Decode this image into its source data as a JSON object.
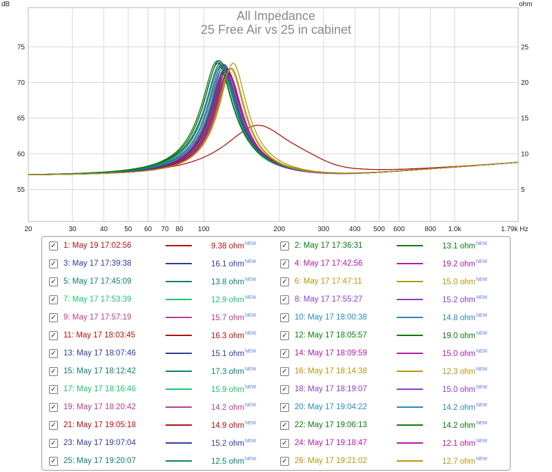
{
  "chart_data": {
    "type": "line",
    "title": "All Impedance",
    "subtitle": "25 Free Air vs 25 in cabinet",
    "ylabel_left": "dB",
    "ylabel_right": "ohm",
    "x_scale": "log",
    "xlim": [
      20,
      1790
    ],
    "ylim": [
      50.5,
      80.5
    ],
    "y2lim": [
      0.5,
      30.5
    ],
    "x_ticks": [
      20,
      30,
      40,
      50,
      60,
      70,
      80,
      100,
      200,
      300,
      400,
      500,
      600,
      800,
      1000,
      1790
    ],
    "x_tick_labels": [
      "20",
      "30",
      "40",
      "50",
      "60",
      "70",
      "80",
      "100",
      "200",
      "300",
      "400",
      "500",
      "600",
      "800",
      "1.0k",
      "1.79k Hz"
    ],
    "y_ticks": [
      55,
      60,
      65,
      70,
      75
    ],
    "y2_ticks": [
      5,
      10,
      15,
      20,
      25
    ],
    "grid": true,
    "series": [
      {
        "name": "1: May 19 17:02:56",
        "color": "#b01010",
        "value": "9.38 ohm",
        "peak_freq": 165,
        "peak_db": 64.0,
        "q": 1.6
      },
      {
        "name": "2: May 17 17:36:31",
        "color": "#0b7a0b",
        "value": "13.1 ohm",
        "peak_freq": 117,
        "peak_db": 72.8,
        "q": 4.2
      },
      {
        "name": "3: May 17 17:39:38",
        "color": "#2e3a9e",
        "value": "16.1 ohm",
        "peak_freq": 115,
        "peak_db": 73.1,
        "q": 4.3
      },
      {
        "name": "4: May 17 17:42:56",
        "color": "#b01aa8",
        "value": "19.2 ohm",
        "peak_freq": 121,
        "peak_db": 72.5,
        "q": 4.5
      },
      {
        "name": "5: May 17 17:45:09",
        "color": "#0f7d6e",
        "value": "13.8 ohm",
        "peak_freq": 119,
        "peak_db": 72.6,
        "q": 4.4
      },
      {
        "name": "6: May 17 17:47:11",
        "color": "#b8960c",
        "value": "15.0 ohm",
        "peak_freq": 131,
        "peak_db": 72.7,
        "q": 4.8
      },
      {
        "name": "7: May 17 17:53:39",
        "color": "#1ec46e",
        "value": "12.9 ohm",
        "peak_freq": 121,
        "peak_db": 71.4,
        "q": 4.5
      },
      {
        "name": "8: May 17 17:55:27",
        "color": "#8c3cc8",
        "value": "15.2 ohm",
        "peak_freq": 126,
        "peak_db": 71.2,
        "q": 4.6
      },
      {
        "name": "9: May 17 17:57:19",
        "color": "#b83c8c",
        "value": "15.7 ohm",
        "peak_freq": 123,
        "peak_db": 71.6,
        "q": 4.5
      },
      {
        "name": "10: May 17 18:00:38",
        "color": "#2c86b8",
        "value": "14.8 ohm",
        "peak_freq": 119,
        "peak_db": 72.0,
        "q": 4.4
      },
      {
        "name": "11: May 17 18:03:45",
        "color": "#b01010",
        "value": "16.3 ohm",
        "peak_freq": 124,
        "peak_db": 71.8,
        "q": 4.6
      },
      {
        "name": "12: May 17 18:05:57",
        "color": "#0b7a0b",
        "value": "19.0 ohm",
        "peak_freq": 113,
        "peak_db": 73.0,
        "q": 4.3
      },
      {
        "name": "13: May 17 18:07:46",
        "color": "#2e3a9e",
        "value": "15.1 ohm",
        "peak_freq": 123,
        "peak_db": 72.0,
        "q": 4.5
      },
      {
        "name": "14: May 17 18:09:59",
        "color": "#b01aa8",
        "value": "15.0 ohm",
        "peak_freq": 125,
        "peak_db": 71.5,
        "q": 4.6
      },
      {
        "name": "15: May 17 18:12:42",
        "color": "#0f7d6e",
        "value": "17.3 ohm",
        "peak_freq": 117,
        "peak_db": 72.4,
        "q": 4.3
      },
      {
        "name": "16: May 17 18:14:38",
        "color": "#b8960c",
        "value": "12.3 ohm",
        "peak_freq": 129,
        "peak_db": 72.0,
        "q": 4.8
      },
      {
        "name": "17: May 17 18:16:46",
        "color": "#1ec46e",
        "value": "15.9 ohm",
        "peak_freq": 119,
        "peak_db": 71.0,
        "q": 4.4
      },
      {
        "name": "18: May 17 18:19:07",
        "color": "#8c3cc8",
        "value": "15.0 ohm",
        "peak_freq": 123,
        "peak_db": 70.9,
        "q": 4.6
      },
      {
        "name": "19: May 17 18:20:42",
        "color": "#b83c8c",
        "value": "14.2 ohm",
        "peak_freq": 121,
        "peak_db": 71.9,
        "q": 4.5
      },
      {
        "name": "20: May 17 19:04:22",
        "color": "#2c86b8",
        "value": "14.2 ohm",
        "peak_freq": 116,
        "peak_db": 72.6,
        "q": 4.4
      },
      {
        "name": "21: May 17 19:05:18",
        "color": "#b01010",
        "value": "14.9 ohm",
        "peak_freq": 125,
        "peak_db": 71.3,
        "q": 4.6
      },
      {
        "name": "22: May 17 19:06:13",
        "color": "#0b7a0b",
        "value": "14.2 ohm",
        "peak_freq": 114,
        "peak_db": 72.7,
        "q": 4.3
      },
      {
        "name": "23: May 17 19:07:04",
        "color": "#2e3a9e",
        "value": "15.2 ohm",
        "peak_freq": 121,
        "peak_db": 71.7,
        "q": 4.5
      },
      {
        "name": "24: May 17 19:18:47",
        "color": "#b01aa8",
        "value": "12.1 ohm",
        "peak_freq": 126,
        "peak_db": 71.0,
        "q": 4.7
      },
      {
        "name": "25: May 17 19:20:07",
        "color": "#0f7d6e",
        "value": "12.5 ohm",
        "peak_freq": 118,
        "peak_db": 72.2,
        "q": 4.4
      },
      {
        "name": "26: May 17 19:21:02",
        "color": "#b8960c",
        "value": "12.7 ohm",
        "peak_freq": 128,
        "peak_db": 71.9,
        "q": 4.8
      }
    ]
  },
  "legend": {
    "new_badge": "NEW",
    "checkmark": "✓"
  }
}
